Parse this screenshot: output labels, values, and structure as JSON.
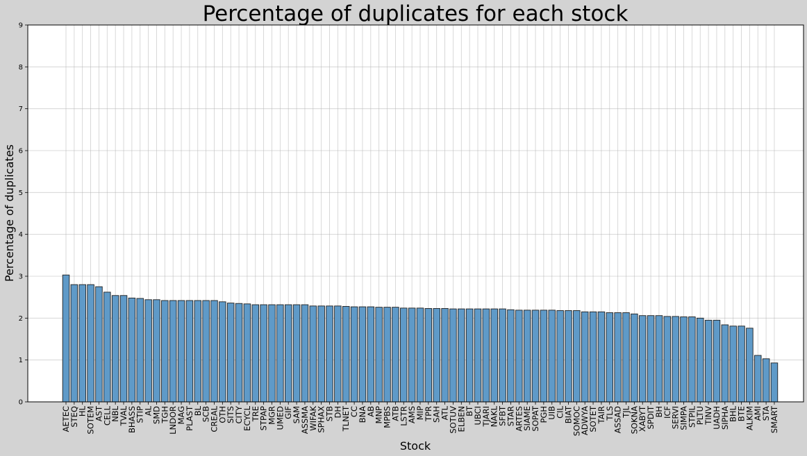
{
  "chart_data": {
    "type": "bar",
    "title": "Percentage of duplicates for each stock",
    "xlabel": "Stock",
    "ylabel": "Percentage of duplicates",
    "ylim": [
      0,
      9
    ],
    "yticks": [
      0,
      1,
      2,
      3,
      4,
      5,
      6,
      7,
      8,
      9
    ],
    "grid": true,
    "bar_color": "#5f9ac8",
    "edge_color": "#1f1f1f",
    "categories": [
      "AETEC",
      "STEQ",
      "HL",
      "SOTEM",
      "AST",
      "CELL",
      "NBL",
      "TVAL",
      "BHASS",
      "STIP",
      "AL",
      "SMD",
      "TGH",
      "LNDOR",
      "MAG",
      "PLAST",
      "BL",
      "SCB",
      "CREAL",
      "OTH",
      "SITS",
      "CITY",
      "ECYCL",
      "TRE",
      "STPAP",
      "MGR",
      "UMED",
      "GIF",
      "SAM",
      "ASSMA",
      "WIFAK",
      "SPHAX",
      "STB",
      "DH",
      "TLNET",
      "CC",
      "BNA",
      "AB",
      "MNP",
      "MPBS",
      "ATB",
      "LSTR",
      "AMS",
      "MIP",
      "TPR",
      "SAH",
      "ATL",
      "SOTUV",
      "ELBEN",
      "BT",
      "UBCI",
      "TJARI",
      "NAKL",
      "SFBT",
      "STAR",
      "ARTES",
      "SIAME",
      "SOPAT",
      "PGH",
      "UIB",
      "CIL",
      "BIAT",
      "SOMOC",
      "ADWYA",
      "SOTET",
      "TAIR",
      "TLS",
      "ASSAD",
      "TJL",
      "SOKNA",
      "XABYT",
      "SPDIT",
      "BH",
      "ICF",
      "SERVI",
      "SIMPA",
      "STPIL",
      "PLTU",
      "TINV",
      "UADH",
      "SIPHA",
      "BHL",
      "BTE",
      "ALKIM",
      "AMI",
      "STA",
      "SMART"
    ],
    "values": [
      3.03,
      2.8,
      2.8,
      2.8,
      2.75,
      2.62,
      2.54,
      2.54,
      2.48,
      2.47,
      2.44,
      2.44,
      2.42,
      2.42,
      2.42,
      2.42,
      2.42,
      2.42,
      2.42,
      2.39,
      2.36,
      2.35,
      2.34,
      2.32,
      2.32,
      2.32,
      2.32,
      2.32,
      2.32,
      2.32,
      2.29,
      2.29,
      2.29,
      2.29,
      2.28,
      2.27,
      2.27,
      2.27,
      2.26,
      2.26,
      2.26,
      2.24,
      2.24,
      2.24,
      2.23,
      2.23,
      2.23,
      2.22,
      2.22,
      2.22,
      2.22,
      2.22,
      2.22,
      2.22,
      2.2,
      2.19,
      2.19,
      2.19,
      2.19,
      2.19,
      2.18,
      2.18,
      2.18,
      2.15,
      2.15,
      2.15,
      2.13,
      2.13,
      2.13,
      2.1,
      2.06,
      2.06,
      2.06,
      2.04,
      2.04,
      2.03,
      2.03,
      2.0,
      1.95,
      1.95,
      1.84,
      1.81,
      1.81,
      1.76,
      1.11,
      1.03,
      0.93
    ]
  }
}
